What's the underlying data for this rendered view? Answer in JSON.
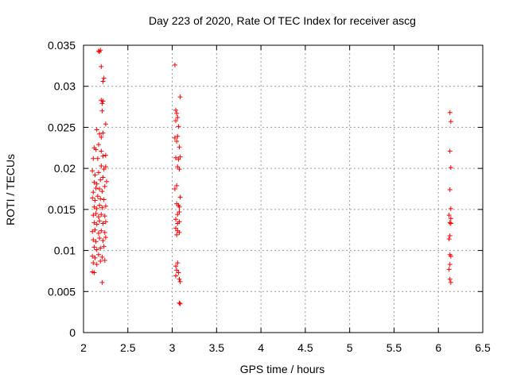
{
  "chart_data": {
    "type": "scatter",
    "title": "Day 223 of 2020, Rate Of TEC Index for receiver ascg",
    "xlabel": "GPS time / hours",
    "ylabel": "ROTI / TECUs",
    "xlim": [
      2,
      6.5
    ],
    "ylim": [
      0,
      0.035
    ],
    "xticks": [
      "2",
      "2.5",
      "3",
      "3.5",
      "4",
      "4.5",
      "5",
      "5.5",
      "6",
      "6.5"
    ],
    "yticks": [
      "0",
      "0.005",
      "0.01",
      "0.015",
      "0.02",
      "0.025",
      "0.03",
      "0.035"
    ],
    "grid": true,
    "marker": "+",
    "color": "#ff0000",
    "series": [
      {
        "points": [
          [
            2.17,
            0.0343
          ],
          [
            2.18,
            0.0342
          ],
          [
            2.19,
            0.0344
          ],
          [
            2.2,
            0.0324
          ],
          [
            2.22,
            0.0306
          ],
          [
            2.23,
            0.031
          ],
          [
            2.2,
            0.0283
          ],
          [
            2.21,
            0.0279
          ],
          [
            2.22,
            0.0282
          ],
          [
            2.21,
            0.027
          ],
          [
            2.25,
            0.0254
          ],
          [
            2.15,
            0.0247
          ],
          [
            2.18,
            0.0242
          ],
          [
            2.2,
            0.0238
          ],
          [
            2.22,
            0.0243
          ],
          [
            2.12,
            0.0225
          ],
          [
            2.14,
            0.0223
          ],
          [
            2.17,
            0.0229
          ],
          [
            2.2,
            0.0221
          ],
          [
            2.11,
            0.0212
          ],
          [
            2.16,
            0.0212
          ],
          [
            2.22,
            0.0215
          ],
          [
            2.25,
            0.0216
          ],
          [
            2.1,
            0.0197
          ],
          [
            2.13,
            0.0192
          ],
          [
            2.17,
            0.0195
          ],
          [
            2.2,
            0.0203
          ],
          [
            2.23,
            0.0199
          ],
          [
            2.25,
            0.0202
          ],
          [
            2.12,
            0.0183
          ],
          [
            2.15,
            0.0181
          ],
          [
            2.19,
            0.0186
          ],
          [
            2.22,
            0.0189
          ],
          [
            2.26,
            0.0184
          ],
          [
            2.11,
            0.0171
          ],
          [
            2.14,
            0.0176
          ],
          [
            2.18,
            0.0175
          ],
          [
            2.21,
            0.0172
          ],
          [
            2.24,
            0.0178
          ],
          [
            2.1,
            0.0164
          ],
          [
            2.13,
            0.0161
          ],
          [
            2.16,
            0.0166
          ],
          [
            2.19,
            0.0163
          ],
          [
            2.23,
            0.0162
          ],
          [
            2.12,
            0.0153
          ],
          [
            2.15,
            0.0151
          ],
          [
            2.18,
            0.0155
          ],
          [
            2.21,
            0.0152
          ],
          [
            2.25,
            0.0154
          ],
          [
            2.11,
            0.0143
          ],
          [
            2.14,
            0.0145
          ],
          [
            2.17,
            0.0141
          ],
          [
            2.2,
            0.0144
          ],
          [
            2.24,
            0.0142
          ],
          [
            2.12,
            0.0134
          ],
          [
            2.15,
            0.0132
          ],
          [
            2.18,
            0.0136
          ],
          [
            2.22,
            0.0133
          ],
          [
            2.25,
            0.0135
          ],
          [
            2.1,
            0.0123
          ],
          [
            2.13,
            0.0125
          ],
          [
            2.17,
            0.0121
          ],
          [
            2.2,
            0.0124
          ],
          [
            2.24,
            0.0122
          ],
          [
            2.11,
            0.0113
          ],
          [
            2.14,
            0.0111
          ],
          [
            2.18,
            0.0115
          ],
          [
            2.22,
            0.0112
          ],
          [
            2.25,
            0.0116
          ],
          [
            2.12,
            0.0104
          ],
          [
            2.15,
            0.0101
          ],
          [
            2.19,
            0.0103
          ],
          [
            2.23,
            0.0105
          ],
          [
            2.1,
            0.0093
          ],
          [
            2.13,
            0.0091
          ],
          [
            2.17,
            0.0095
          ],
          [
            2.21,
            0.0092
          ],
          [
            2.24,
            0.0088
          ],
          [
            2.11,
            0.0085
          ],
          [
            2.15,
            0.0083
          ],
          [
            2.19,
            0.0087
          ],
          [
            2.1,
            0.0074
          ],
          [
            2.12,
            0.0073
          ],
          [
            2.21,
            0.0061
          ],
          [
            3.03,
            0.0326
          ],
          [
            3.04,
            0.0271
          ],
          [
            3.05,
            0.0267
          ],
          [
            3.06,
            0.0262
          ],
          [
            3.04,
            0.0258
          ],
          [
            3.07,
            0.0251
          ],
          [
            3.03,
            0.0237
          ],
          [
            3.05,
            0.0233
          ],
          [
            3.06,
            0.0239
          ],
          [
            3.09,
            0.0287
          ],
          [
            3.08,
            0.0226
          ],
          [
            3.04,
            0.0213
          ],
          [
            3.07,
            0.0211
          ],
          [
            3.09,
            0.0214
          ],
          [
            3.06,
            0.0202
          ],
          [
            3.08,
            0.0199
          ],
          [
            3.05,
            0.0179
          ],
          [
            3.03,
            0.0175
          ],
          [
            3.09,
            0.0165
          ],
          [
            3.05,
            0.0157
          ],
          [
            3.07,
            0.0155
          ],
          [
            3.08,
            0.0153
          ],
          [
            3.06,
            0.0144
          ],
          [
            3.08,
            0.0147
          ],
          [
            3.04,
            0.0138
          ],
          [
            3.06,
            0.0133
          ],
          [
            3.08,
            0.0135
          ],
          [
            3.04,
            0.0127
          ],
          [
            3.06,
            0.0124
          ],
          [
            3.08,
            0.0122
          ],
          [
            3.05,
            0.0119
          ],
          [
            3.06,
            0.0085
          ],
          [
            3.04,
            0.0081
          ],
          [
            3.05,
            0.0076
          ],
          [
            3.07,
            0.0073
          ],
          [
            3.04,
            0.0069
          ],
          [
            3.08,
            0.0065
          ],
          [
            3.09,
            0.0062
          ],
          [
            3.08,
            0.0036
          ],
          [
            3.09,
            0.0035
          ],
          [
            6.13,
            0.0268
          ],
          [
            6.14,
            0.0257
          ],
          [
            6.13,
            0.0221
          ],
          [
            6.14,
            0.0201
          ],
          [
            6.13,
            0.0174
          ],
          [
            6.14,
            0.0151
          ],
          [
            6.12,
            0.0143
          ],
          [
            6.14,
            0.0139
          ],
          [
            6.13,
            0.0134
          ],
          [
            6.14,
            0.0133
          ],
          [
            6.13,
            0.0118
          ],
          [
            6.12,
            0.0114
          ],
          [
            6.13,
            0.0095
          ],
          [
            6.14,
            0.0093
          ],
          [
            6.13,
            0.0083
          ],
          [
            6.12,
            0.0077
          ],
          [
            6.13,
            0.0065
          ],
          [
            6.14,
            0.0061
          ]
        ]
      }
    ]
  }
}
